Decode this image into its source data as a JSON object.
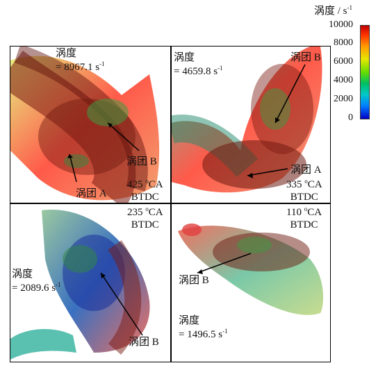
{
  "legend": {
    "title": "涡度 / s",
    "title_sup": "-1",
    "ticks": [
      "10000",
      "8000",
      "6000",
      "4000",
      "2000",
      "0"
    ]
  },
  "panels": [
    {
      "vorticity_label": "涡度",
      "vorticity_value": "= 8967.1 s",
      "unit_sup": "-1",
      "angle_value": "425 ",
      "angle_sup": "o",
      "angle_unit": "CA",
      "angle_ref": "BTDC",
      "vortex_a": "涡团 A",
      "vortex_b": "涡团 B"
    },
    {
      "vorticity_label": "涡度",
      "vorticity_value": "= 4659.8 s",
      "unit_sup": "-1",
      "angle_value": "335 ",
      "angle_sup": "o",
      "angle_unit": "CA",
      "angle_ref": "BTDC",
      "vortex_a": "涡团 A",
      "vortex_b": "涡团 B"
    },
    {
      "vorticity_label": "涡度",
      "vorticity_value": "= 2089.6 s",
      "unit_sup": "-1",
      "angle_value": "235 ",
      "angle_sup": "o",
      "angle_unit": "CA",
      "angle_ref": "BTDC",
      "vortex_b": "涡团 B"
    },
    {
      "vorticity_label": "涡度",
      "vorticity_value": "= 1496.5 s",
      "unit_sup": "-1",
      "angle_value": "110 ",
      "angle_sup": "o",
      "angle_unit": "CA",
      "angle_ref": "BTDC",
      "vortex_b": "涡团 B"
    }
  ]
}
